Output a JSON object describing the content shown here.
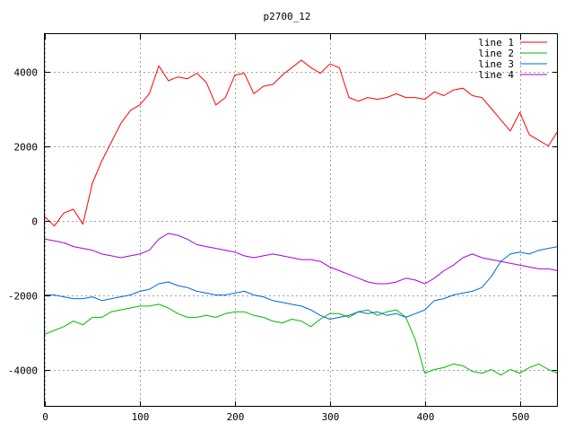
{
  "chart_data": {
    "type": "line",
    "title": "p2700_12",
    "xlabel": "",
    "ylabel": "",
    "xlim": [
      0,
      540
    ],
    "ylim": [
      -5000,
      5000
    ],
    "x_ticks": [
      0,
      100,
      200,
      300,
      400,
      500
    ],
    "y_ticks": [
      -4000,
      -2000,
      0,
      2000,
      4000
    ],
    "x_tick_labels": [
      "0",
      "100",
      "200",
      "300",
      "400",
      "500"
    ],
    "y_tick_labels": [
      "-4000",
      "-2000",
      "0",
      "2000",
      "4000"
    ],
    "grid": true,
    "legend_position": "top-right",
    "x": [
      0,
      10,
      20,
      30,
      40,
      50,
      60,
      70,
      80,
      90,
      100,
      110,
      120,
      130,
      140,
      150,
      160,
      170,
      180,
      190,
      200,
      210,
      220,
      230,
      240,
      250,
      260,
      270,
      280,
      290,
      300,
      310,
      320,
      330,
      340,
      350,
      360,
      370,
      380,
      390,
      400,
      410,
      420,
      430,
      440,
      450,
      460,
      470,
      480,
      490,
      500,
      510,
      520,
      530,
      540
    ],
    "series": [
      {
        "name": "line 1",
        "color": "#ff0000",
        "values": [
          100,
          -150,
          200,
          300,
          -100,
          1000,
          1600,
          2100,
          2600,
          2950,
          3100,
          3400,
          4150,
          3750,
          3850,
          3800,
          3950,
          3700,
          3100,
          3300,
          3900,
          3950,
          3400,
          3600,
          3650,
          3900,
          4100,
          4300,
          4100,
          3950,
          4200,
          4100,
          3300,
          3200,
          3300,
          3250,
          3300,
          3400,
          3300,
          3300,
          3250,
          3450,
          3350,
          3500,
          3550,
          3350,
          3300,
          3000,
          2700,
          2400,
          2900,
          2300,
          2150,
          2000,
          2400
        ]
      },
      {
        "name": "line 2",
        "color": "#00bb00",
        "values": [
          -3050,
          -2950,
          -2850,
          -2700,
          -2800,
          -2600,
          -2600,
          -2450,
          -2400,
          -2350,
          -2300,
          -2300,
          -2250,
          -2350,
          -2500,
          -2600,
          -2600,
          -2550,
          -2600,
          -2500,
          -2450,
          -2450,
          -2550,
          -2600,
          -2700,
          -2750,
          -2650,
          -2700,
          -2850,
          -2650,
          -2500,
          -2500,
          -2600,
          -2450,
          -2400,
          -2550,
          -2450,
          -2400,
          -2600,
          -3200,
          -4100,
          -4000,
          -3950,
          -3850,
          -3900,
          -4050,
          -4100,
          -4000,
          -4150,
          -4000,
          -4100,
          -3950,
          -3850,
          -4000,
          -4100
        ]
      },
      {
        "name": "line 3",
        "color": "#0066dd",
        "values": [
          -2000,
          -2000,
          -2050,
          -2100,
          -2100,
          -2050,
          -2150,
          -2100,
          -2050,
          -2000,
          -1900,
          -1850,
          -1700,
          -1650,
          -1750,
          -1800,
          -1900,
          -1950,
          -2000,
          -2000,
          -1950,
          -1900,
          -2000,
          -2050,
          -2150,
          -2200,
          -2250,
          -2300,
          -2400,
          -2550,
          -2650,
          -2600,
          -2550,
          -2450,
          -2500,
          -2450,
          -2550,
          -2500,
          -2600,
          -2500,
          -2400,
          -2150,
          -2100,
          -2000,
          -1950,
          -1900,
          -1800,
          -1500,
          -1100,
          -900,
          -850,
          -900,
          -800,
          -750,
          -700
        ]
      },
      {
        "name": "line 4",
        "color": "#aa00dd",
        "values": [
          -500,
          -550,
          -600,
          -700,
          -750,
          -800,
          -900,
          -950,
          -1000,
          -950,
          -900,
          -800,
          -500,
          -350,
          -400,
          -500,
          -650,
          -700,
          -750,
          -800,
          -850,
          -950,
          -1000,
          -950,
          -900,
          -950,
          -1000,
          -1050,
          -1050,
          -1100,
          -1250,
          -1350,
          -1450,
          -1550,
          -1650,
          -1700,
          -1700,
          -1650,
          -1550,
          -1600,
          -1700,
          -1550,
          -1350,
          -1200,
          -1000,
          -900,
          -1000,
          -1050,
          -1100,
          -1150,
          -1200,
          -1250,
          -1300,
          -1300,
          -1350
        ]
      }
    ]
  }
}
